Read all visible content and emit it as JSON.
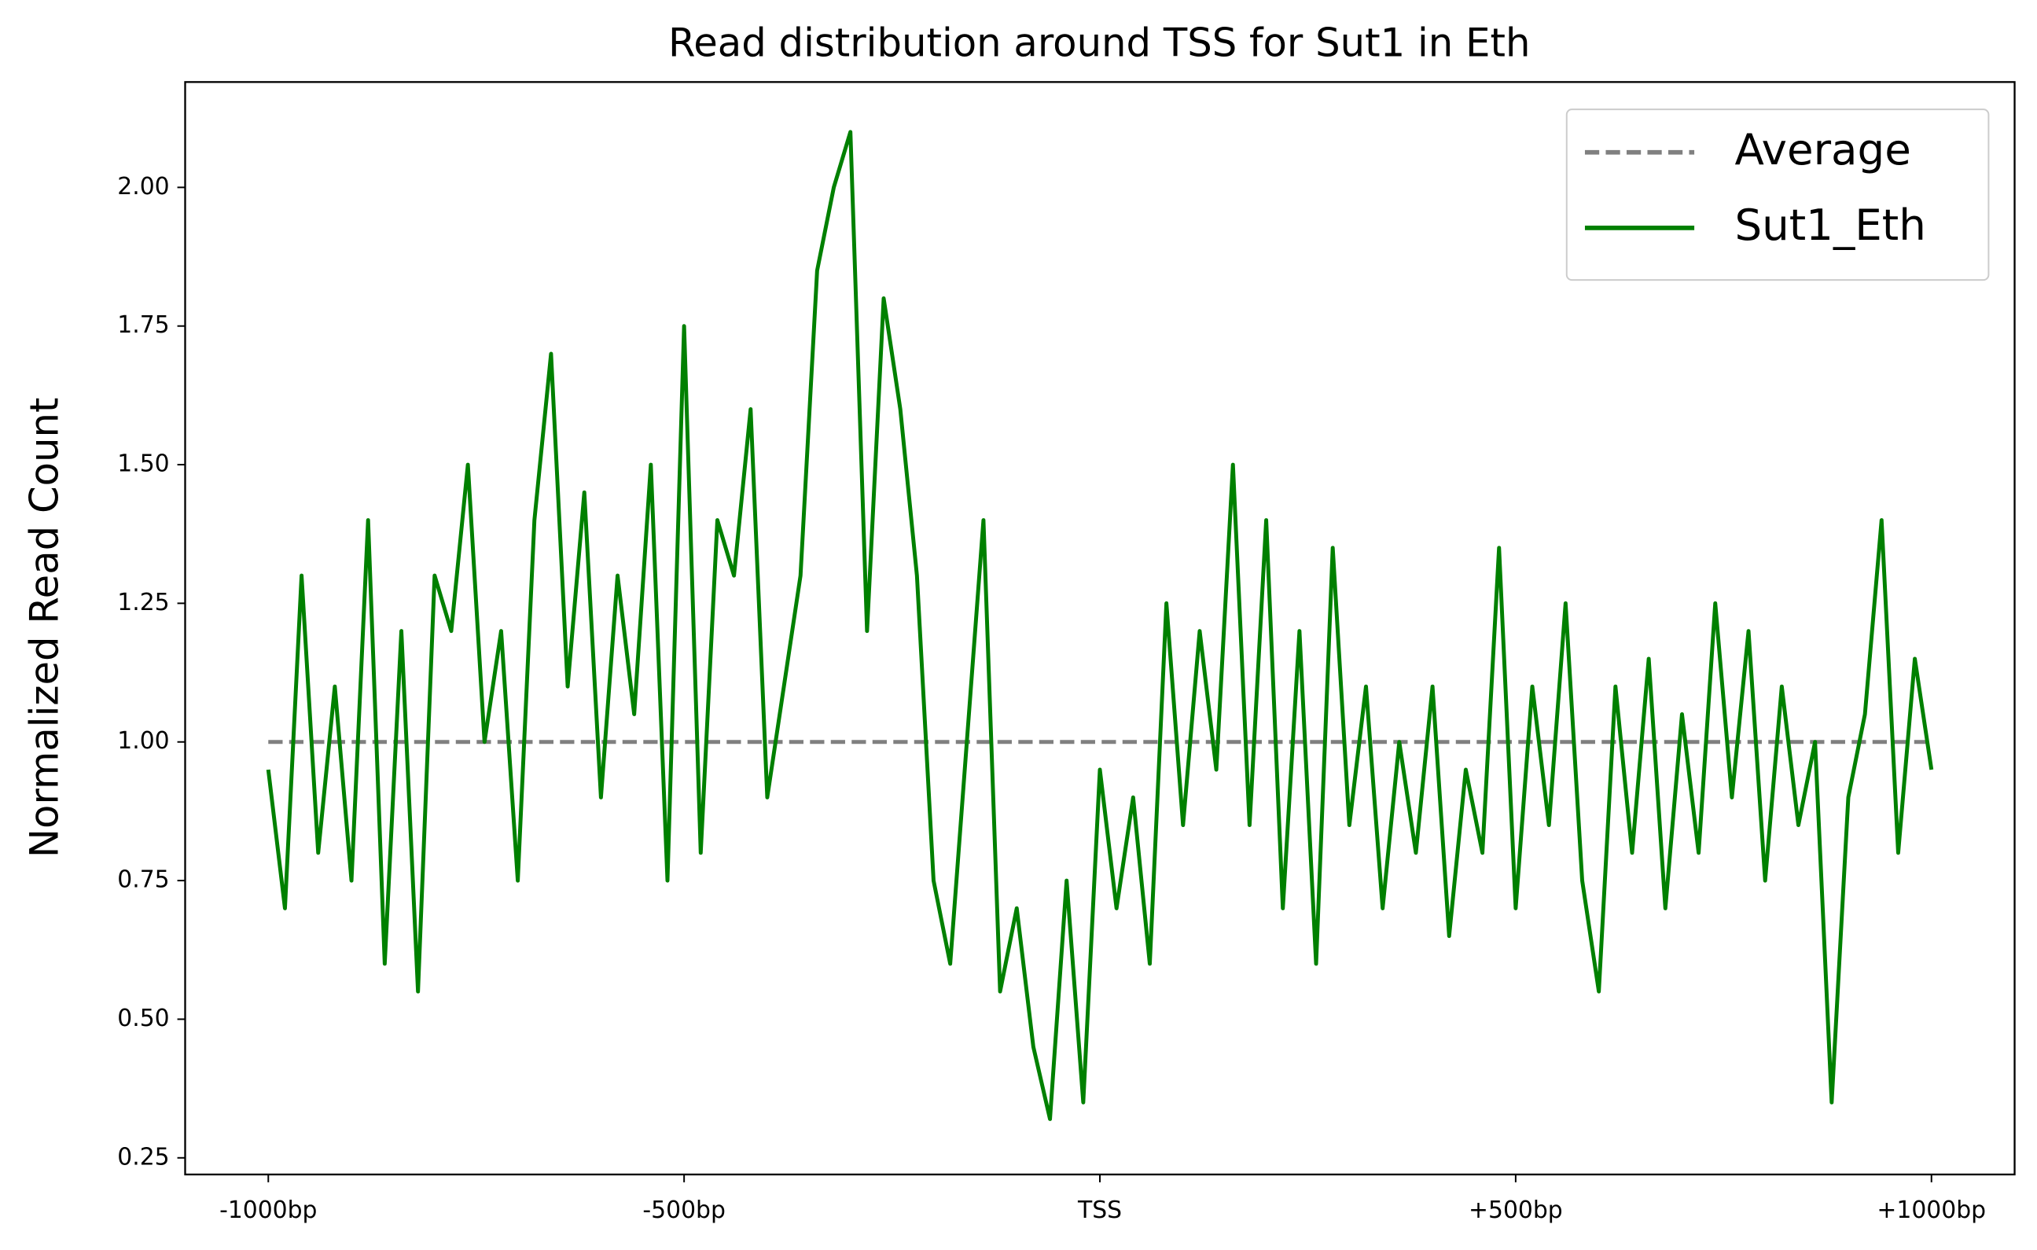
{
  "chart_data": {
    "type": "line",
    "title": "Read distribution around TSS for Sut1 in Eth",
    "y_label": "Normalized Read Count",
    "xlim": [
      -1100,
      1100
    ],
    "ylim": [
      0.22,
      2.19
    ],
    "xticks": [
      {
        "value": -1000,
        "label": "-1000bp"
      },
      {
        "value": -500,
        "label": "-500bp"
      },
      {
        "value": 0,
        "label": "TSS"
      },
      {
        "value": 500,
        "label": "+500bp"
      },
      {
        "value": 1000,
        "label": "+1000bp"
      }
    ],
    "yticks": [
      {
        "value": 0.25,
        "label": "0.25"
      },
      {
        "value": 0.5,
        "label": "0.50"
      },
      {
        "value": 0.75,
        "label": "0.75"
      },
      {
        "value": 1,
        "label": "1.00"
      },
      {
        "value": 1.25,
        "label": "1.25"
      },
      {
        "value": 1.5,
        "label": "1.50"
      },
      {
        "value": 1.75,
        "label": "1.75"
      },
      {
        "value": 2,
        "label": "2.00"
      }
    ],
    "legend": "upper right",
    "series": [
      {
        "name": "Average",
        "color": "#808080",
        "dash": true,
        "x": [
          -1000,
          1000
        ],
        "values": [
          1,
          1
        ]
      },
      {
        "name": "Sut1_Eth",
        "color": "#008000",
        "dash": false,
        "x": [
          -1000,
          -980,
          -960,
          -940,
          -920,
          -900,
          -880,
          -860,
          -840,
          -820,
          -800,
          -780,
          -760,
          -740,
          -720,
          -700,
          -680,
          -660,
          -640,
          -620,
          -600,
          -580,
          -560,
          -540,
          -520,
          -500,
          -480,
          -460,
          -440,
          -420,
          -400,
          -380,
          -360,
          -340,
          -320,
          -300,
          -280,
          -260,
          -240,
          -220,
          -200,
          -180,
          -160,
          -140,
          -120,
          -100,
          -80,
          -60,
          -40,
          -20,
          0,
          20,
          40,
          60,
          80,
          100,
          120,
          140,
          160,
          180,
          200,
          220,
          240,
          260,
          280,
          300,
          320,
          340,
          360,
          380,
          400,
          420,
          440,
          460,
          480,
          500,
          520,
          540,
          560,
          580,
          600,
          620,
          640,
          660,
          680,
          700,
          720,
          740,
          760,
          780,
          800,
          820,
          840,
          860,
          880,
          900,
          920,
          940,
          960,
          980,
          1000
        ],
        "values": [
          0.95,
          0.7,
          1.3,
          0.8,
          1.1,
          0.75,
          1.4,
          0.6,
          1.2,
          0.55,
          1.3,
          1.2,
          1.5,
          1.0,
          1.2,
          0.75,
          1.4,
          1.7,
          1.1,
          1.45,
          0.9,
          1.3,
          1.05,
          1.5,
          0.75,
          1.75,
          0.8,
          1.4,
          1.3,
          1.6,
          0.9,
          1.1,
          1.3,
          1.85,
          2.0,
          2.1,
          1.2,
          1.8,
          1.6,
          1.3,
          0.75,
          0.6,
          1.0,
          1.4,
          0.55,
          0.7,
          0.45,
          0.32,
          0.75,
          0.35,
          0.95,
          0.7,
          0.9,
          0.6,
          1.25,
          0.85,
          1.2,
          0.95,
          1.5,
          0.85,
          1.4,
          0.7,
          1.2,
          0.6,
          1.35,
          0.85,
          1.1,
          0.7,
          1.0,
          0.8,
          1.1,
          0.65,
          0.95,
          0.8,
          1.35,
          0.7,
          1.1,
          0.85,
          1.25,
          0.75,
          0.55,
          1.1,
          0.8,
          1.15,
          0.7,
          1.05,
          0.8,
          1.25,
          0.9,
          1.2,
          0.75,
          1.1,
          0.85,
          1.0,
          0.35,
          0.9,
          1.05,
          1.4,
          0.8,
          1.15,
          0.95
        ]
      }
    ]
  }
}
